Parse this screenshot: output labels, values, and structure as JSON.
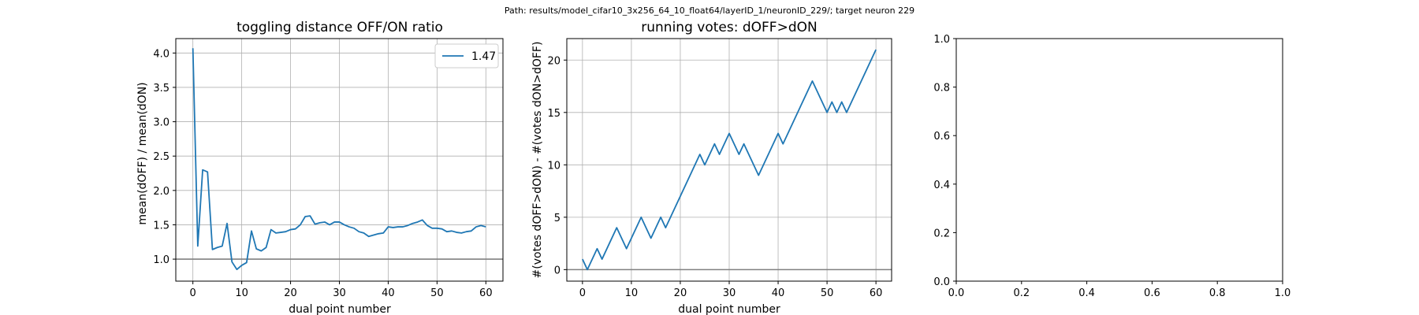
{
  "figure_title": "Path: results/model_cifar10_3x256_64_10_float64/layerID_1/neuronID_229/; target neuron 229",
  "chart_data": [
    {
      "type": "line",
      "title": "toggling distance OFF/ON ratio",
      "xlabel": "dual point number",
      "ylabel": "mean(dOFF) / mean(dON)",
      "xlim": [
        -3.5,
        63.5
      ],
      "ylim": [
        0.68,
        4.21
      ],
      "xticks": [
        0,
        10,
        20,
        30,
        40,
        50,
        60
      ],
      "yticks": [
        1.0,
        1.5,
        2.0,
        2.5,
        3.0,
        3.5,
        4.0
      ],
      "ytick_labels": [
        "1.0",
        "1.5",
        "2.0",
        "2.5",
        "3.0",
        "3.5",
        "4.0"
      ],
      "grid": true,
      "legend_position": "top-right",
      "reference_line": 1.0,
      "series": [
        {
          "name": "1.47",
          "color": "#1f77b4",
          "x": [
            0,
            1,
            2,
            3,
            4,
            5,
            6,
            7,
            8,
            9,
            10,
            11,
            12,
            13,
            14,
            15,
            16,
            17,
            18,
            19,
            20,
            21,
            22,
            23,
            24,
            25,
            26,
            27,
            28,
            29,
            30,
            31,
            32,
            33,
            34,
            35,
            36,
            37,
            38,
            39,
            40,
            41,
            42,
            43,
            44,
            45,
            46,
            47,
            48,
            49,
            50,
            51,
            52,
            53,
            54,
            55,
            56,
            57,
            58,
            59,
            60
          ],
          "values": [
            4.07,
            1.19,
            2.3,
            2.27,
            1.14,
            1.17,
            1.19,
            1.52,
            0.96,
            0.85,
            0.91,
            0.95,
            1.41,
            1.15,
            1.12,
            1.17,
            1.43,
            1.38,
            1.39,
            1.4,
            1.43,
            1.44,
            1.5,
            1.62,
            1.63,
            1.51,
            1.53,
            1.54,
            1.5,
            1.54,
            1.54,
            1.5,
            1.47,
            1.45,
            1.4,
            1.38,
            1.33,
            1.35,
            1.37,
            1.38,
            1.47,
            1.46,
            1.47,
            1.47,
            1.49,
            1.52,
            1.54,
            1.57,
            1.49,
            1.45,
            1.45,
            1.44,
            1.4,
            1.41,
            1.39,
            1.38,
            1.4,
            1.41,
            1.47,
            1.49,
            1.47
          ]
        }
      ]
    },
    {
      "type": "line",
      "title": "running votes: dOFF>dON",
      "xlabel": "dual point number",
      "ylabel": "#(votes dOFF>dON) - #(votes dON>dOFF)",
      "xlim": [
        -3.2,
        63.2
      ],
      "ylim": [
        -1.1,
        22.05
      ],
      "xticks": [
        0,
        10,
        20,
        30,
        40,
        50,
        60
      ],
      "yticks": [
        0,
        5,
        10,
        15,
        20
      ],
      "ytick_labels": [
        "0",
        "5",
        "10",
        "15",
        "20"
      ],
      "grid": true,
      "reference_line": 0,
      "series": [
        {
          "color": "#1f77b4",
          "x": [
            0,
            1,
            3,
            4,
            7,
            9,
            12,
            14,
            16,
            17,
            24,
            25,
            27,
            28,
            30,
            32,
            33,
            36,
            40,
            41,
            47,
            50,
            51,
            52,
            53,
            54,
            60
          ],
          "values": [
            1,
            0,
            2,
            1,
            4,
            2,
            5,
            3,
            5,
            4,
            11,
            10,
            12,
            11,
            13,
            11,
            12,
            9,
            13,
            12,
            18,
            15,
            16,
            15,
            16,
            15,
            21
          ]
        }
      ]
    },
    {
      "type": "line",
      "title": "",
      "xlabel": "",
      "ylabel": "",
      "xlim": [
        0,
        1
      ],
      "ylim": [
        0,
        1
      ],
      "xticks": [
        0,
        0.2,
        0.4,
        0.6,
        0.8,
        1.0
      ],
      "yticks": [
        0,
        0.2,
        0.4,
        0.6,
        0.8,
        1.0
      ],
      "xtick_labels": [
        "0.0",
        "0.2",
        "0.4",
        "0.6",
        "0.8",
        "1.0"
      ],
      "ytick_labels": [
        "0.0",
        "0.2",
        "0.4",
        "0.6",
        "0.8",
        "1.0"
      ],
      "grid": false,
      "series": []
    }
  ]
}
